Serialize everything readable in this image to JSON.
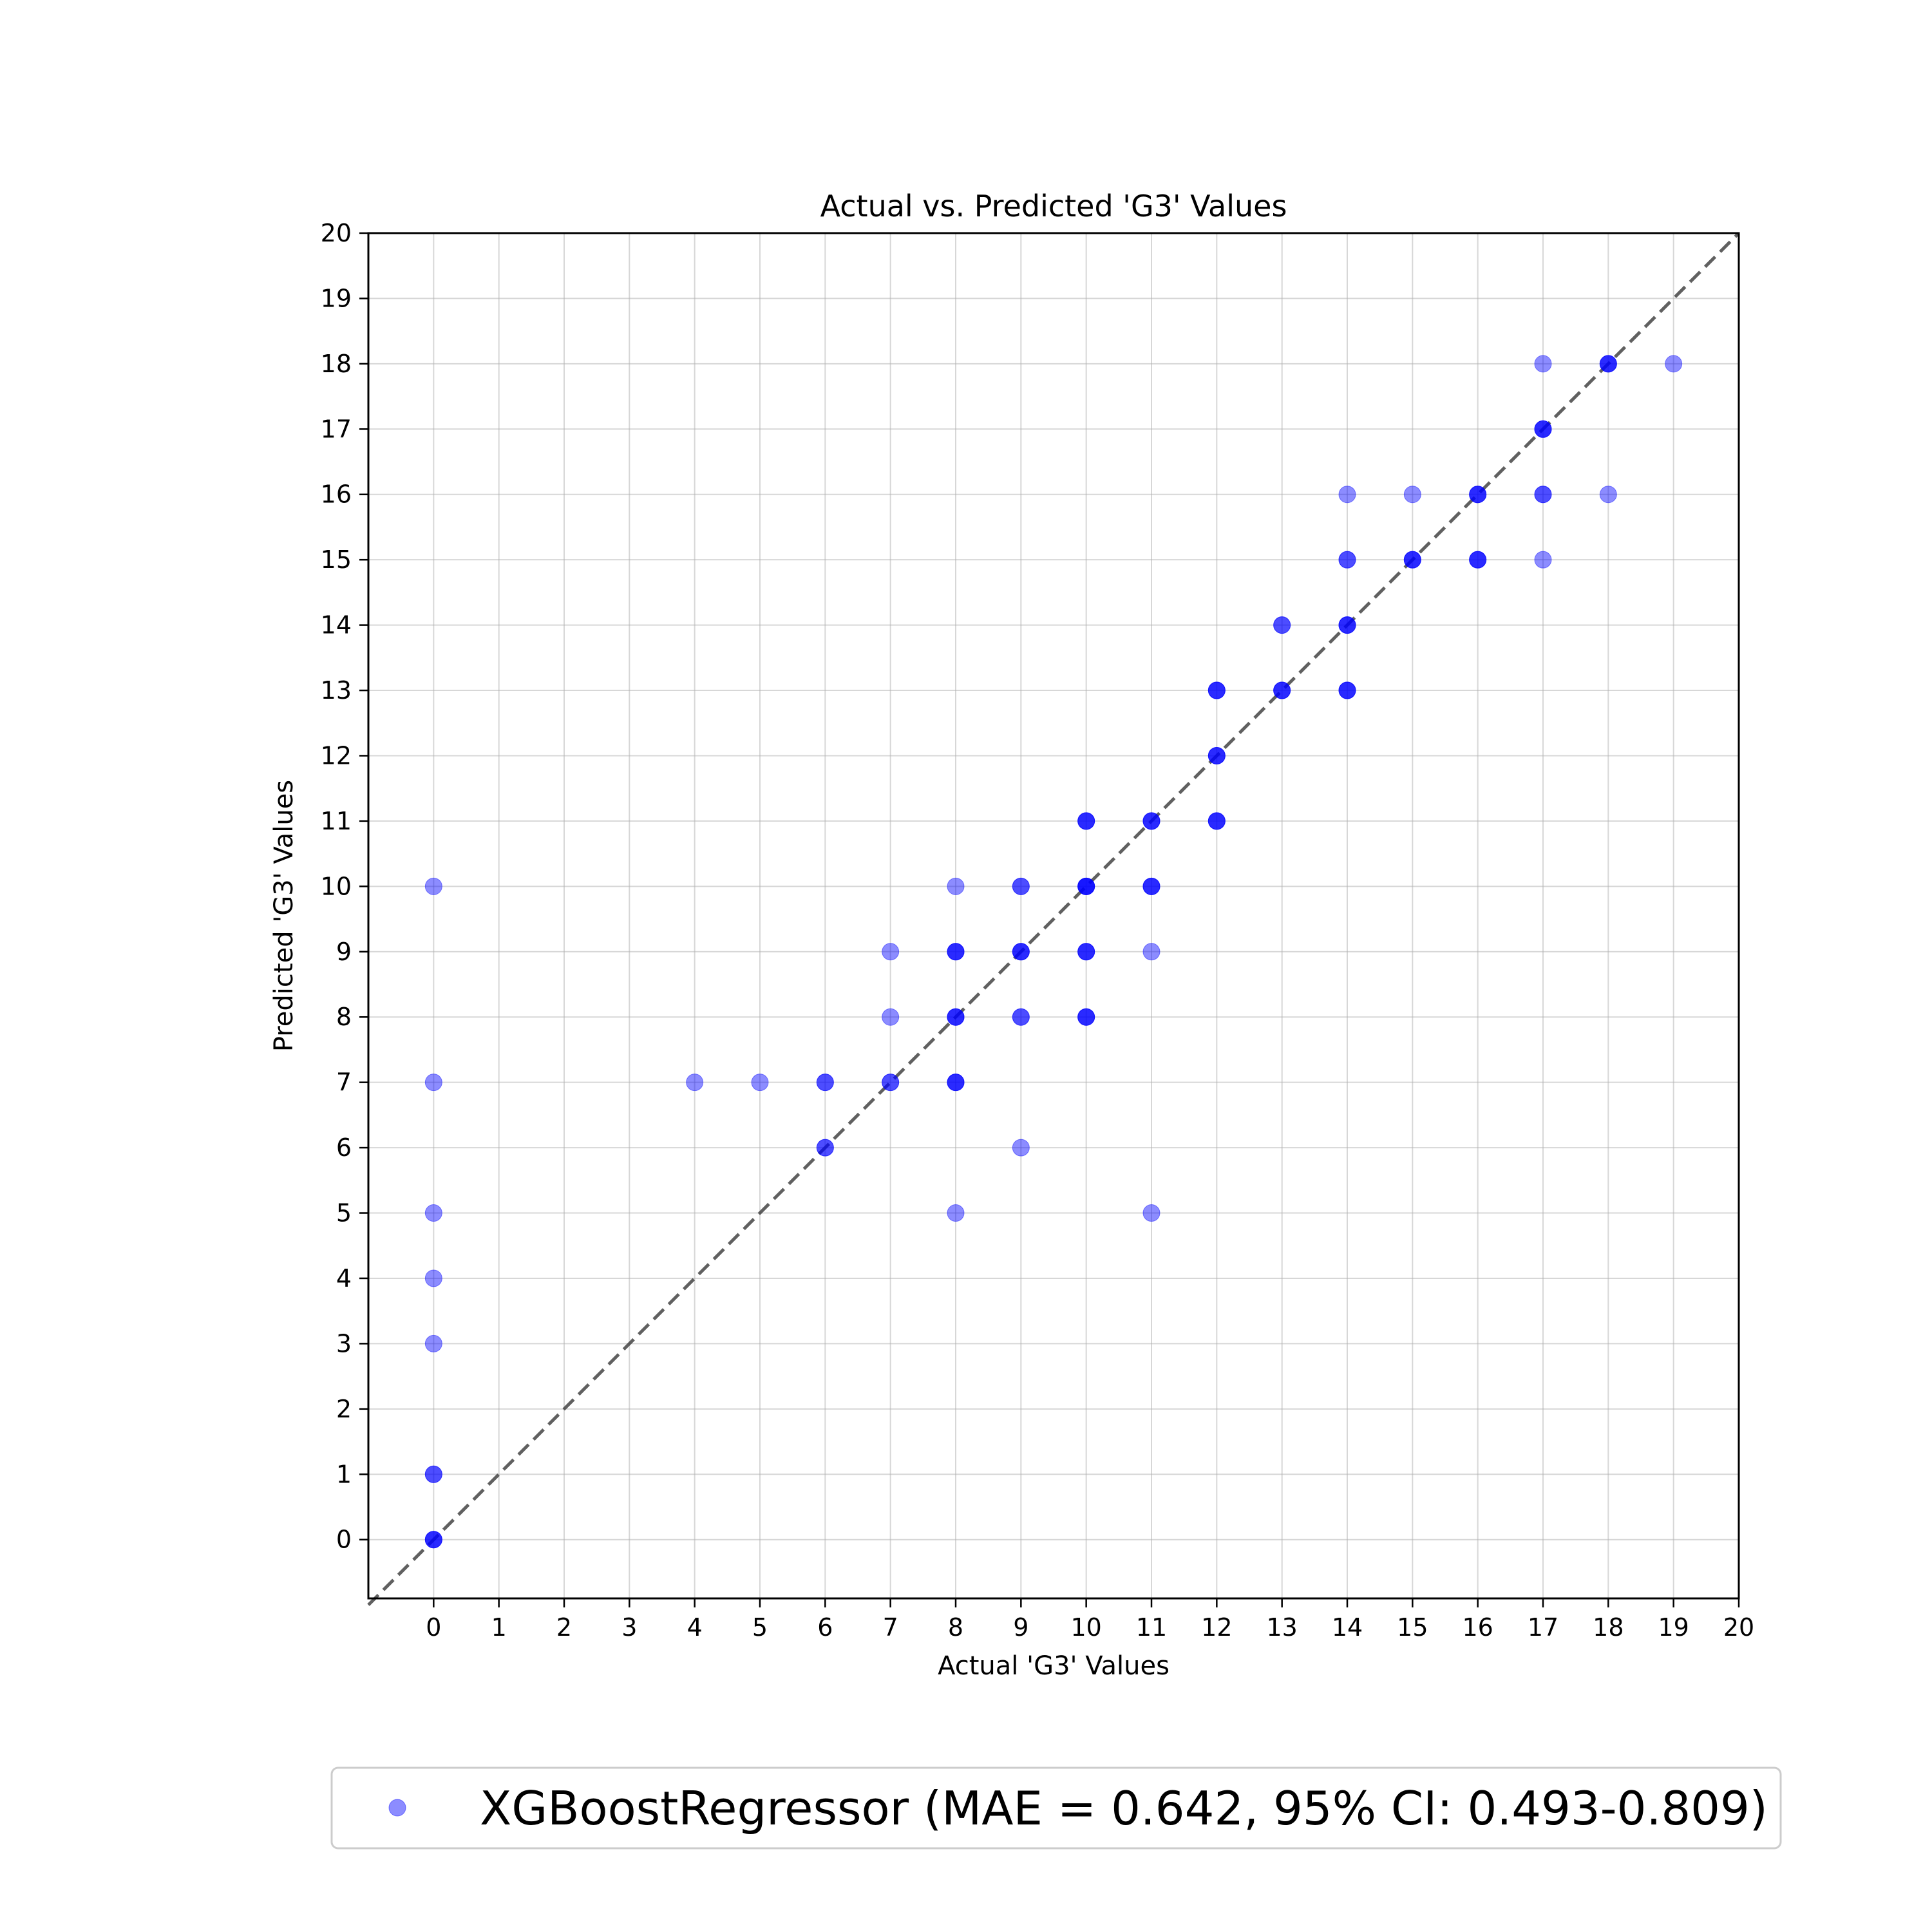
{
  "chart_data": {
    "type": "scatter",
    "title": "Actual vs. Predicted 'G3' Values",
    "xlabel": "Actual 'G3' Values",
    "ylabel": "Predicted 'G3' Values",
    "xlim": [
      -1,
      20
    ],
    "ylim": [
      -0.9,
      20
    ],
    "xticks": [
      0,
      1,
      2,
      3,
      4,
      5,
      6,
      7,
      8,
      9,
      10,
      11,
      12,
      13,
      14,
      15,
      16,
      17,
      18,
      19,
      20
    ],
    "yticks": [
      0,
      1,
      2,
      3,
      4,
      5,
      6,
      7,
      8,
      9,
      10,
      11,
      12,
      13,
      14,
      15,
      16,
      17,
      18,
      19,
      20
    ],
    "grid": true,
    "legend_position": "below",
    "reference_line": {
      "style": "dashed",
      "color": "#444444",
      "from": [
        -1,
        -1
      ],
      "to": [
        20,
        20
      ]
    },
    "series": [
      {
        "name": "XGBoostRegressor (MAE = 0.642, 95% CI: 0.493-0.809)",
        "color": "#0000ff",
        "alpha": 0.45,
        "points": [
          [
            0,
            0
          ],
          [
            0,
            0
          ],
          [
            0,
            0
          ],
          [
            0,
            1
          ],
          [
            0,
            1
          ],
          [
            0,
            3
          ],
          [
            0,
            4
          ],
          [
            0,
            5
          ],
          [
            0,
            7
          ],
          [
            0,
            10
          ],
          [
            4,
            7
          ],
          [
            5,
            7
          ],
          [
            6,
            6
          ],
          [
            6,
            6
          ],
          [
            6,
            7
          ],
          [
            6,
            7
          ],
          [
            7,
            7
          ],
          [
            7,
            7
          ],
          [
            7,
            8
          ],
          [
            7,
            9
          ],
          [
            8,
            5
          ],
          [
            8,
            7
          ],
          [
            8,
            7
          ],
          [
            8,
            7
          ],
          [
            8,
            8
          ],
          [
            8,
            8
          ],
          [
            8,
            8
          ],
          [
            8,
            9
          ],
          [
            8,
            9
          ],
          [
            8,
            9
          ],
          [
            8,
            10
          ],
          [
            9,
            6
          ],
          [
            9,
            8
          ],
          [
            9,
            8
          ],
          [
            9,
            9
          ],
          [
            9,
            9
          ],
          [
            9,
            9
          ],
          [
            9,
            10
          ],
          [
            9,
            10
          ],
          [
            10,
            8
          ],
          [
            10,
            8
          ],
          [
            10,
            8
          ],
          [
            10,
            9
          ],
          [
            10,
            9
          ],
          [
            10,
            9
          ],
          [
            10,
            10
          ],
          [
            10,
            10
          ],
          [
            10,
            10
          ],
          [
            10,
            10
          ],
          [
            10,
            11
          ],
          [
            10,
            11
          ],
          [
            10,
            11
          ],
          [
            11,
            5
          ],
          [
            11,
            9
          ],
          [
            11,
            10
          ],
          [
            11,
            10
          ],
          [
            11,
            10
          ],
          [
            11,
            11
          ],
          [
            11,
            11
          ],
          [
            11,
            11
          ],
          [
            12,
            11
          ],
          [
            12,
            11
          ],
          [
            12,
            11
          ],
          [
            12,
            12
          ],
          [
            12,
            12
          ],
          [
            12,
            12
          ],
          [
            12,
            13
          ],
          [
            12,
            13
          ],
          [
            12,
            13
          ],
          [
            13,
            13
          ],
          [
            13,
            13
          ],
          [
            13,
            13
          ],
          [
            13,
            14
          ],
          [
            13,
            14
          ],
          [
            14,
            13
          ],
          [
            14,
            13
          ],
          [
            14,
            13
          ],
          [
            14,
            14
          ],
          [
            14,
            14
          ],
          [
            14,
            14
          ],
          [
            14,
            15
          ],
          [
            14,
            15
          ],
          [
            14,
            16
          ],
          [
            15,
            15
          ],
          [
            15,
            15
          ],
          [
            15,
            15
          ],
          [
            15,
            16
          ],
          [
            16,
            15
          ],
          [
            16,
            15
          ],
          [
            16,
            15
          ],
          [
            16,
            16
          ],
          [
            16,
            16
          ],
          [
            16,
            16
          ],
          [
            17,
            15
          ],
          [
            17,
            16
          ],
          [
            17,
            16
          ],
          [
            17,
            17
          ],
          [
            17,
            17
          ],
          [
            17,
            17
          ],
          [
            17,
            18
          ],
          [
            18,
            16
          ],
          [
            18,
            18
          ],
          [
            18,
            18
          ],
          [
            18,
            18
          ],
          [
            19,
            18
          ]
        ]
      }
    ]
  }
}
